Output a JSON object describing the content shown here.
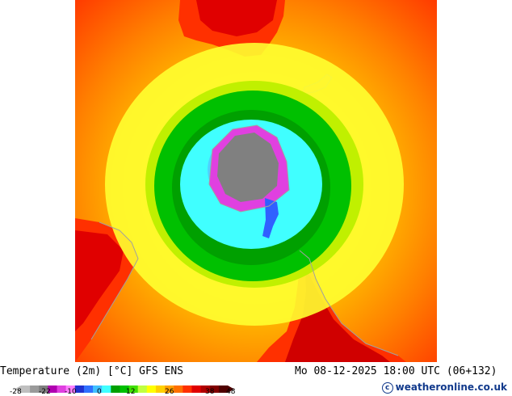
{
  "header": {
    "title": "Temperature (2m) [°C] GFS ENS",
    "datetime": "Mo 08-12-2025 18:00 UTC (06+132)"
  },
  "legend": {
    "ticks": [
      "-28",
      "-22",
      "-10",
      "0",
      "12",
      "26",
      "38",
      "48"
    ],
    "colors": [
      "#bfbfbf",
      "#9a9a9a",
      "#7f7f7f",
      "#b000b0",
      "#e040e0",
      "#ff80ff",
      "#2030d0",
      "#3070ff",
      "#40c0ff",
      "#40ffff",
      "#00a000",
      "#00c000",
      "#40e000",
      "#c0ff40",
      "#ffff00",
      "#ffd000",
      "#ffa000",
      "#ff7000",
      "#ff3000",
      "#e00000",
      "#b00000",
      "#800000",
      "#500000"
    ]
  },
  "credit": {
    "text": "weatheronline.co.uk"
  },
  "map": {
    "colors": {
      "hot": "#ff4000",
      "warm": "#ff9000",
      "mild": "#ffc000",
      "yellow": "#ffff30",
      "lightgreen": "#c8f000",
      "green": "#00d000",
      "darkgreen": "#009000",
      "cyan": "#40ffff",
      "lightblue": "#40d0ff",
      "magenta": "#e040e0",
      "gray": "#808080",
      "land_red": "#e00000",
      "coast": "#a0a0a0"
    }
  }
}
